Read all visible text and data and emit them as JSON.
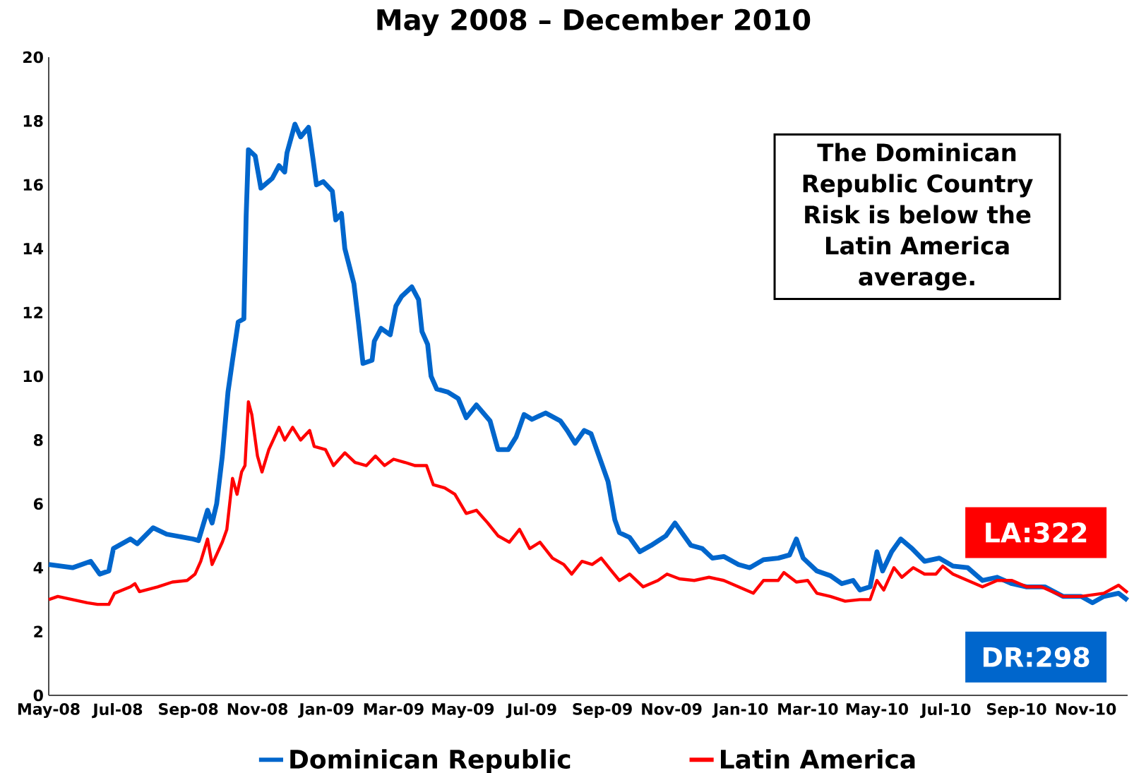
{
  "chart_data": {
    "type": "line",
    "title": "May 2008 – December 2010",
    "xlim": [
      "2008-05-01",
      "2010-12-08"
    ],
    "ylim": [
      0,
      20
    ],
    "yticks": [
      0,
      2,
      4,
      6,
      8,
      10,
      12,
      14,
      16,
      18,
      20
    ],
    "xticks": [
      {
        "value": "2008-05-01",
        "label": "May-08"
      },
      {
        "value": "2008-07-01",
        "label": "Jul-08"
      },
      {
        "value": "2008-09-01",
        "label": "Sep-08"
      },
      {
        "value": "2008-11-01",
        "label": "Nov-08"
      },
      {
        "value": "2009-01-01",
        "label": "Jan-09"
      },
      {
        "value": "2009-03-01",
        "label": "Mar-09"
      },
      {
        "value": "2009-05-01",
        "label": "May-09"
      },
      {
        "value": "2009-07-01",
        "label": "Jul-09"
      },
      {
        "value": "2009-09-01",
        "label": "Sep-09"
      },
      {
        "value": "2009-11-01",
        "label": "Nov-09"
      },
      {
        "value": "2010-01-01",
        "label": "Jan-10"
      },
      {
        "value": "2010-03-01",
        "label": "Mar-10"
      },
      {
        "value": "2010-05-01",
        "label": "May-10"
      },
      {
        "value": "2010-07-01",
        "label": "Jul-10"
      },
      {
        "value": "2010-09-01",
        "label": "Sep-10"
      },
      {
        "value": "2010-11-01",
        "label": "Nov-10"
      }
    ],
    "legend": "bottom",
    "line_style": "solid",
    "annotations": [
      "The Dominican Republic Country Risk is below the Latin America average.",
      "LA:322",
      "DR:298"
    ],
    "series": [
      {
        "name": "Dominican Republic",
        "color": "#0066cc",
        "x": [
          "2008-05-01",
          "2008-05-22",
          "2008-06-07",
          "2008-06-15",
          "2008-06-23",
          "2008-06-27",
          "2008-07-12",
          "2008-07-18",
          "2008-08-01",
          "2008-08-13",
          "2008-09-05",
          "2008-09-10",
          "2008-09-18",
          "2008-09-22",
          "2008-09-26",
          "2008-10-01",
          "2008-10-06",
          "2008-10-10",
          "2008-10-15",
          "2008-10-20",
          "2008-10-22",
          "2008-10-24",
          "2008-10-30",
          "2008-11-04",
          "2008-11-14",
          "2008-11-20",
          "2008-11-25",
          "2008-11-27",
          "2008-12-04",
          "2008-12-09",
          "2008-12-16",
          "2008-12-20",
          "2008-12-23",
          "2008-12-29",
          "2009-01-06",
          "2009-01-09",
          "2009-01-14",
          "2009-01-17",
          "2009-01-25",
          "2009-01-29",
          "2009-02-02",
          "2009-02-10",
          "2009-02-12",
          "2009-02-18",
          "2009-02-26",
          "2009-03-03",
          "2009-03-08",
          "2009-03-17",
          "2009-03-23",
          "2009-03-26",
          "2009-03-31",
          "2009-04-03",
          "2009-04-08",
          "2009-04-18",
          "2009-04-27",
          "2009-05-04",
          "2009-05-13",
          "2009-05-25",
          "2009-06-01",
          "2009-06-10",
          "2009-06-17",
          "2009-06-24",
          "2009-07-01",
          "2009-07-13",
          "2009-07-26",
          "2009-08-01",
          "2009-08-08",
          "2009-08-16",
          "2009-08-22",
          "2009-08-29",
          "2009-09-06",
          "2009-09-12",
          "2009-09-16",
          "2009-09-25",
          "2009-10-04",
          "2009-10-14",
          "2009-10-27",
          "2009-11-04",
          "2009-11-12",
          "2009-11-18",
          "2009-11-28",
          "2009-12-07",
          "2009-12-17",
          "2009-12-30",
          "2010-01-09",
          "2010-01-21",
          "2010-02-03",
          "2010-02-13",
          "2010-02-19",
          "2010-02-25",
          "2010-03-09",
          "2010-03-21",
          "2010-03-31",
          "2010-04-10",
          "2010-04-16",
          "2010-04-25",
          "2010-05-01",
          "2010-05-06",
          "2010-05-14",
          "2010-05-22",
          "2010-06-01",
          "2010-06-12",
          "2010-06-25",
          "2010-07-07",
          "2010-07-20",
          "2010-08-02",
          "2010-08-15",
          "2010-08-28",
          "2010-09-10",
          "2010-09-26",
          "2010-10-12",
          "2010-10-28",
          "2010-11-07",
          "2010-11-17",
          "2010-11-30",
          "2010-12-08"
        ],
        "values": [
          4.1,
          4.0,
          4.2,
          3.8,
          3.9,
          4.6,
          4.9,
          4.75,
          5.25,
          5.05,
          4.9,
          4.85,
          5.8,
          5.4,
          6.0,
          7.5,
          9.5,
          10.5,
          11.7,
          11.8,
          15.0,
          17.1,
          16.9,
          15.9,
          16.2,
          16.6,
          16.4,
          17.0,
          17.9,
          17.5,
          17.8,
          16.8,
          16.0,
          16.1,
          15.8,
          14.9,
          15.1,
          14.0,
          12.9,
          11.7,
          10.4,
          10.5,
          11.1,
          11.5,
          11.3,
          12.2,
          12.5,
          12.8,
          12.4,
          11.4,
          11.0,
          10.0,
          9.6,
          9.5,
          9.3,
          8.7,
          9.1,
          8.6,
          7.7,
          7.7,
          8.1,
          8.8,
          8.65,
          8.85,
          8.6,
          8.3,
          7.9,
          8.3,
          8.2,
          7.5,
          6.7,
          5.5,
          5.1,
          4.95,
          4.5,
          4.7,
          5.0,
          5.4,
          5.0,
          4.7,
          4.6,
          4.3,
          4.35,
          4.1,
          4.0,
          4.25,
          4.3,
          4.4,
          4.9,
          4.3,
          3.9,
          3.75,
          3.5,
          3.6,
          3.3,
          3.4,
          4.5,
          3.9,
          4.5,
          4.9,
          4.6,
          4.2,
          4.3,
          4.05,
          4.0,
          3.6,
          3.7,
          3.5,
          3.4,
          3.4,
          3.1,
          3.1,
          2.9,
          3.1,
          3.2,
          2.98
        ]
      },
      {
        "name": "Latin America",
        "color": "#ff0000",
        "x": [
          "2008-05-01",
          "2008-05-09",
          "2008-05-22",
          "2008-06-04",
          "2008-06-13",
          "2008-06-23",
          "2008-06-28",
          "2008-07-12",
          "2008-07-16",
          "2008-07-20",
          "2008-08-05",
          "2008-08-18",
          "2008-08-31",
          "2008-09-07",
          "2008-09-12",
          "2008-09-18",
          "2008-09-22",
          "2008-10-01",
          "2008-10-05",
          "2008-10-10",
          "2008-10-14",
          "2008-10-18",
          "2008-10-21",
          "2008-10-24",
          "2008-10-27",
          "2008-11-01",
          "2008-11-05",
          "2008-11-11",
          "2008-11-20",
          "2008-11-25",
          "2008-12-02",
          "2008-12-09",
          "2008-12-17",
          "2008-12-21",
          "2008-12-31",
          "2009-01-07",
          "2009-01-17",
          "2009-01-26",
          "2009-02-05",
          "2009-02-13",
          "2009-02-21",
          "2009-03-01",
          "2009-03-11",
          "2009-03-20",
          "2009-03-30",
          "2009-04-05",
          "2009-04-15",
          "2009-04-24",
          "2009-05-04",
          "2009-05-13",
          "2009-05-23",
          "2009-06-01",
          "2009-06-11",
          "2009-06-20",
          "2009-06-29",
          "2009-07-08",
          "2009-07-19",
          "2009-07-29",
          "2009-08-05",
          "2009-08-14",
          "2009-08-23",
          "2009-08-31",
          "2009-09-09",
          "2009-09-16",
          "2009-09-25",
          "2009-10-07",
          "2009-10-20",
          "2009-10-28",
          "2009-11-08",
          "2009-11-21",
          "2009-12-04",
          "2009-12-17",
          "2009-12-30",
          "2010-01-12",
          "2010-01-21",
          "2010-02-03",
          "2010-02-08",
          "2010-02-19",
          "2010-03-01",
          "2010-03-09",
          "2010-03-21",
          "2010-04-03",
          "2010-04-16",
          "2010-04-25",
          "2010-05-01",
          "2010-05-07",
          "2010-05-16",
          "2010-05-23",
          "2010-06-02",
          "2010-06-12",
          "2010-06-22",
          "2010-06-28",
          "2010-07-07",
          "2010-07-20",
          "2010-08-02",
          "2010-08-15",
          "2010-08-28",
          "2010-09-10",
          "2010-09-23",
          "2010-10-12",
          "2010-10-28",
          "2010-11-17",
          "2010-11-30",
          "2010-12-08"
        ],
        "values": [
          3.0,
          3.1,
          3.0,
          2.9,
          2.85,
          2.85,
          3.2,
          3.4,
          3.5,
          3.25,
          3.4,
          3.55,
          3.6,
          3.8,
          4.2,
          4.9,
          4.1,
          4.8,
          5.2,
          6.8,
          6.3,
          7.0,
          7.2,
          9.2,
          8.8,
          7.5,
          7.0,
          7.7,
          8.4,
          8.0,
          8.4,
          8.0,
          8.3,
          7.8,
          7.7,
          7.2,
          7.6,
          7.3,
          7.2,
          7.5,
          7.2,
          7.4,
          7.3,
          7.2,
          7.2,
          6.6,
          6.5,
          6.3,
          5.7,
          5.8,
          5.4,
          5.0,
          4.8,
          5.2,
          4.6,
          4.8,
          4.3,
          4.1,
          3.8,
          4.2,
          4.1,
          4.3,
          3.9,
          3.6,
          3.8,
          3.4,
          3.6,
          3.8,
          3.65,
          3.6,
          3.7,
          3.6,
          3.4,
          3.2,
          3.6,
          3.6,
          3.85,
          3.55,
          3.6,
          3.2,
          3.1,
          2.95,
          3.0,
          3.0,
          3.6,
          3.3,
          4.0,
          3.7,
          4.0,
          3.8,
          3.8,
          4.05,
          3.8,
          3.6,
          3.4,
          3.6,
          3.6,
          3.4,
          3.4,
          3.1,
          3.1,
          3.2,
          3.45,
          3.22
        ]
      }
    ]
  }
}
